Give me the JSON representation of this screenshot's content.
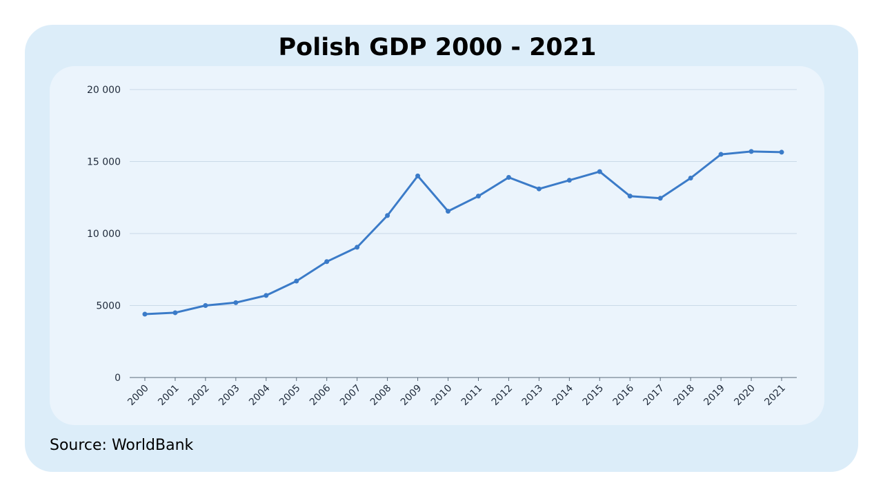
{
  "chart_data": {
    "type": "line",
    "title": "Polish GDP 2000 - 2021",
    "source": "Source: WorldBank",
    "xlabel": "",
    "ylabel": "",
    "categories": [
      "2000",
      "2001",
      "2002",
      "2003",
      "2004",
      "2005",
      "2006",
      "2007",
      "2008",
      "2009",
      "2010",
      "2011",
      "2012",
      "2013",
      "2014",
      "2015",
      "2016",
      "2017",
      "2018",
      "2019",
      "2020",
      "2021"
    ],
    "series": [
      {
        "values": [
          4400,
          4500,
          5000,
          5200,
          5700,
          6700,
          8050,
          9050,
          11250,
          14000,
          11550,
          12600,
          13900,
          13100,
          13700,
          14300,
          12600,
          12450,
          13850,
          15500,
          15700,
          15650
        ]
      }
    ],
    "ylim": [
      0,
      20000
    ],
    "yticks": [
      0,
      5000,
      10000,
      15000,
      20000
    ],
    "ytick_labels": [
      "0",
      "5000",
      "10 000",
      "15 000",
      "20 000"
    ],
    "grid": true,
    "line_color": "#3b7bc8"
  }
}
